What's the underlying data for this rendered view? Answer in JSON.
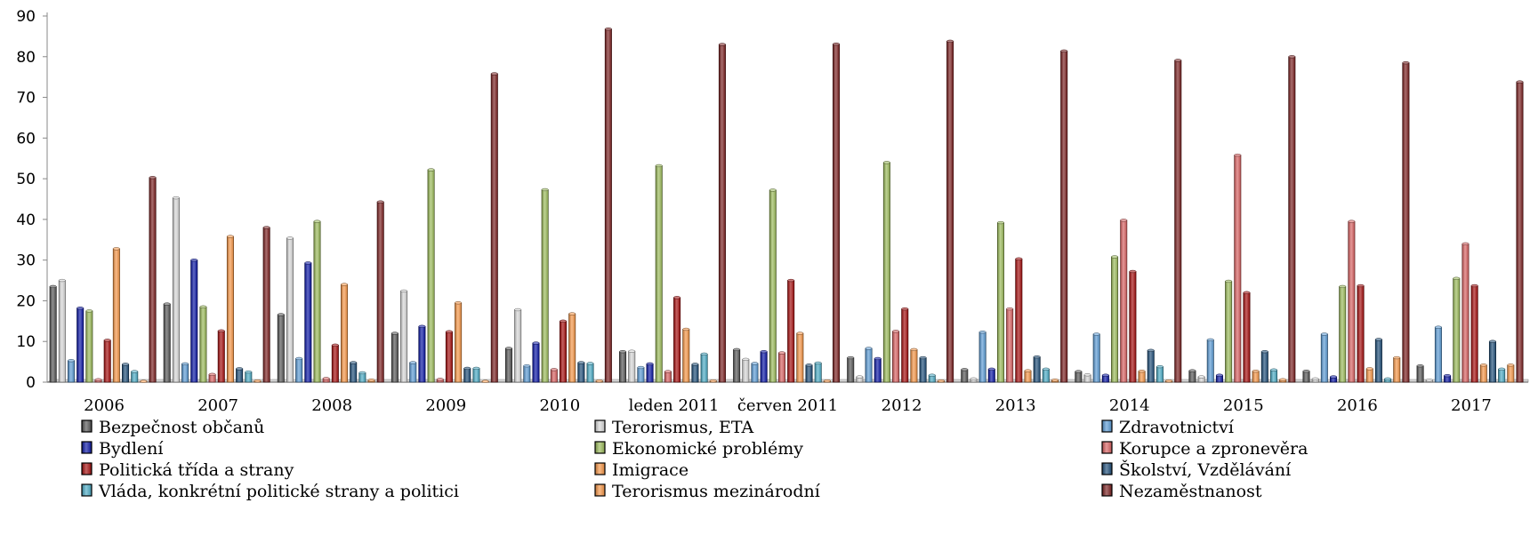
{
  "chart_data": {
    "type": "bar",
    "categories": [
      "2006",
      "2007",
      "2008",
      "2009",
      "2010",
      "leden 2011",
      "červen 2011",
      "2012",
      "2013",
      "2014",
      "2015",
      "2016",
      "2017"
    ],
    "ylim": [
      0,
      90
    ],
    "yticks": [
      0,
      10,
      20,
      30,
      40,
      50,
      60,
      70,
      80,
      90
    ],
    "grid": false,
    "legend_position": "bottom",
    "series": [
      {
        "name": "Bezpečnost občanů",
        "color": "#555555",
        "values": [
          23.5,
          19.2,
          16.6,
          12.0,
          8.3,
          7.5,
          8.0,
          6.0,
          3.1,
          2.6,
          2.8,
          2.7,
          4.0
        ]
      },
      {
        "name": "Terorismus, ETA",
        "color": "#d9d9d9",
        "values": [
          25.0,
          45.3,
          35.4,
          22.4,
          17.8,
          7.6,
          5.6,
          1.3,
          0.8,
          1.8,
          1.3,
          0.8,
          0.5
        ]
      },
      {
        "name": "Zdravotnictví",
        "color": "#5b9bd5",
        "values": [
          5.3,
          4.5,
          5.8,
          4.8,
          4.0,
          3.6,
          4.6,
          8.3,
          12.3,
          11.8,
          10.4,
          11.8,
          13.5
        ]
      },
      {
        "name": "Bydlení",
        "color": "#0a16a6",
        "values": [
          18.2,
          30.0,
          29.3,
          13.7,
          9.6,
          4.5,
          7.5,
          5.8,
          3.2,
          1.7,
          1.7,
          1.3,
          1.6
        ]
      },
      {
        "name": "Ekonomické problémy",
        "color": "#9bbb59",
        "values": [
          17.5,
          18.5,
          39.5,
          52.2,
          47.3,
          53.2,
          47.2,
          54.0,
          39.2,
          30.8,
          24.8,
          23.5,
          25.5
        ]
      },
      {
        "name": "Korupce a zpronevěra",
        "color": "#d96060",
        "values": [
          0.6,
          1.9,
          0.9,
          0.7,
          3.1,
          2.6,
          7.2,
          12.5,
          18.0,
          39.8,
          55.8,
          39.5,
          34.0
        ]
      },
      {
        "name": "Politická třída a strany",
        "color": "#a50d0d",
        "values": [
          10.3,
          12.6,
          9.1,
          12.4,
          15.0,
          20.8,
          25.0,
          18.0,
          30.3,
          27.2,
          22.0,
          23.7,
          23.7
        ]
      },
      {
        "name": "Imigrace",
        "color": "#f79646",
        "values": [
          32.8,
          35.8,
          24.0,
          19.5,
          16.8,
          13.0,
          12.0,
          8.0,
          2.8,
          2.7,
          2.7,
          3.3,
          4.2
        ]
      },
      {
        "name": "Školství, Vzdělávání",
        "color": "#1f4e79",
        "values": [
          4.4,
          3.3,
          4.8,
          3.4,
          4.8,
          4.4,
          4.2,
          6.0,
          6.2,
          7.8,
          7.5,
          10.5,
          10.0
        ]
      },
      {
        "name": "Vláda, konkrétní politické strany a politici",
        "color": "#4bacc6",
        "values": [
          2.6,
          2.5,
          2.3,
          3.4,
          4.6,
          6.9,
          4.7,
          1.7,
          3.2,
          3.8,
          3.0,
          0.8,
          3.2
        ]
      },
      {
        "name": "Terorismus mezinárodní",
        "color": "#f79646",
        "values": [
          0.2,
          0.3,
          0.5,
          0.2,
          0.3,
          0.3,
          0.3,
          0.3,
          0.5,
          0.3,
          0.6,
          6.0,
          4.2
        ]
      },
      {
        "name": "Nezaměstnanost",
        "color": "#7b2020",
        "values": [
          50.3,
          38.0,
          44.3,
          75.8,
          86.8,
          83.0,
          83.1,
          83.8,
          81.4,
          79.1,
          80.0,
          78.5,
          73.8
        ]
      }
    ]
  }
}
